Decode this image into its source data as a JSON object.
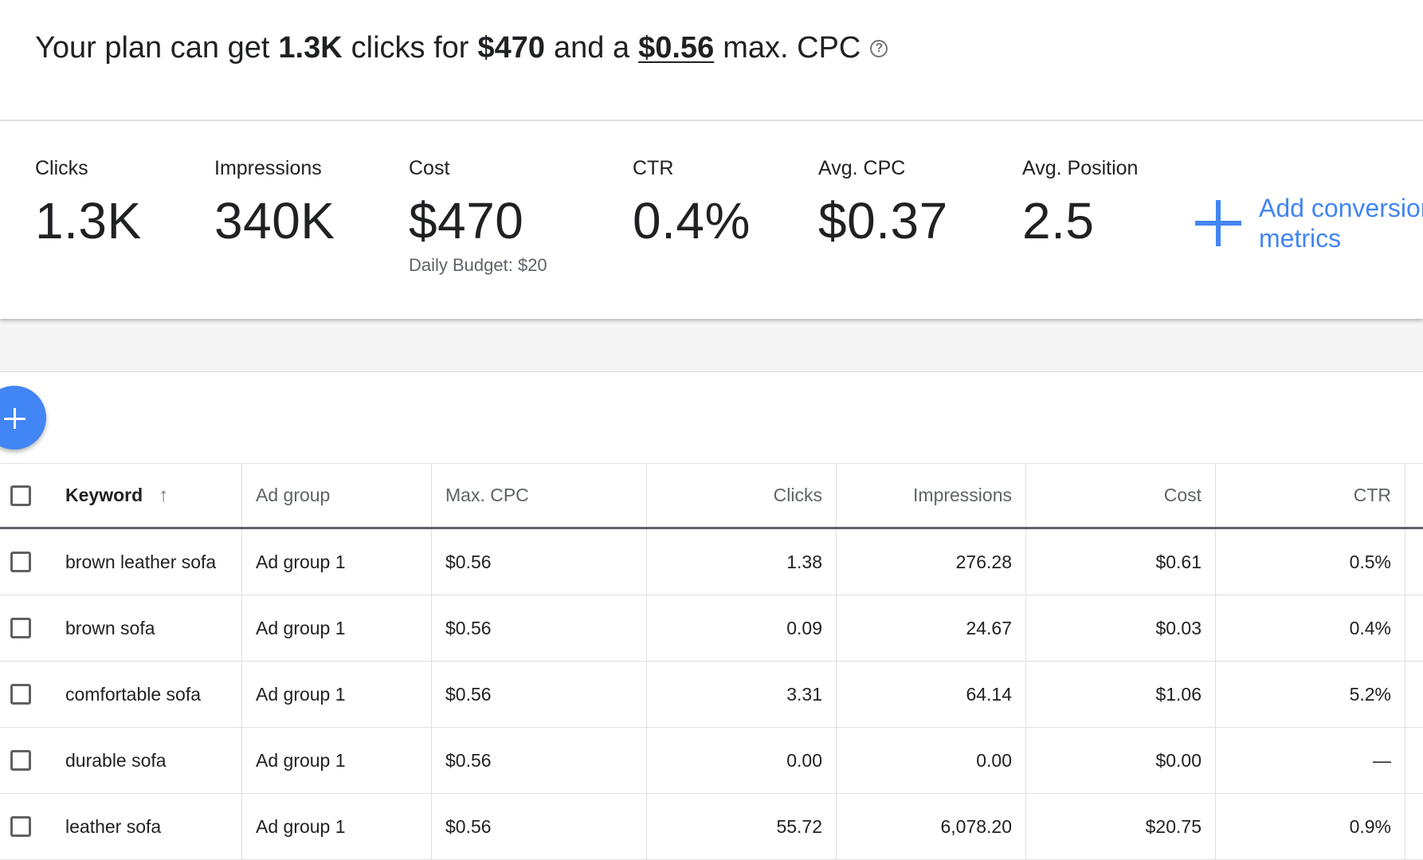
{
  "headline": {
    "prefix": "Your plan can get",
    "clicks": "1.3K",
    "mid1": "clicks for",
    "cost": "$470",
    "mid2": "and a",
    "max_cpc": "$0.56",
    "suffix": "max. CPC",
    "help_icon_glyph": "?"
  },
  "metrics": [
    {
      "label": "Clicks",
      "value": "1.3K",
      "sub": ""
    },
    {
      "label": "Impressions",
      "value": "340K",
      "sub": ""
    },
    {
      "label": "Cost",
      "value": "$470",
      "sub": "Daily Budget: $20"
    },
    {
      "label": "CTR",
      "value": "0.4%",
      "sub": ""
    },
    {
      "label": "Avg. CPC",
      "value": "$0.37",
      "sub": ""
    },
    {
      "label": "Avg. Position",
      "value": "2.5",
      "sub": ""
    }
  ],
  "add_conversion": {
    "line1": "Add conversion",
    "line2": "metrics"
  },
  "table": {
    "headers": {
      "keyword": "Keyword",
      "sort_glyph": "↑",
      "ad_group": "Ad group",
      "max_cpc": "Max. CPC",
      "clicks": "Clicks",
      "impressions": "Impressions",
      "cost": "Cost",
      "ctr": "CTR"
    },
    "rows": [
      {
        "keyword": "brown leather sofa",
        "ad_group": "Ad group 1",
        "max_cpc": "$0.56",
        "clicks": "1.38",
        "impressions": "276.28",
        "cost": "$0.61",
        "ctr": "0.5%"
      },
      {
        "keyword": "brown sofa",
        "ad_group": "Ad group 1",
        "max_cpc": "$0.56",
        "clicks": "0.09",
        "impressions": "24.67",
        "cost": "$0.03",
        "ctr": "0.4%"
      },
      {
        "keyword": "comfortable sofa",
        "ad_group": "Ad group 1",
        "max_cpc": "$0.56",
        "clicks": "3.31",
        "impressions": "64.14",
        "cost": "$1.06",
        "ctr": "5.2%"
      },
      {
        "keyword": "durable sofa",
        "ad_group": "Ad group 1",
        "max_cpc": "$0.56",
        "clicks": "0.00",
        "impressions": "0.00",
        "cost": "$0.00",
        "ctr": "—"
      },
      {
        "keyword": "leather sofa",
        "ad_group": "Ad group 1",
        "max_cpc": "$0.56",
        "clicks": "55.72",
        "impressions": "6,078.20",
        "cost": "$20.75",
        "ctr": "0.9%"
      }
    ]
  }
}
